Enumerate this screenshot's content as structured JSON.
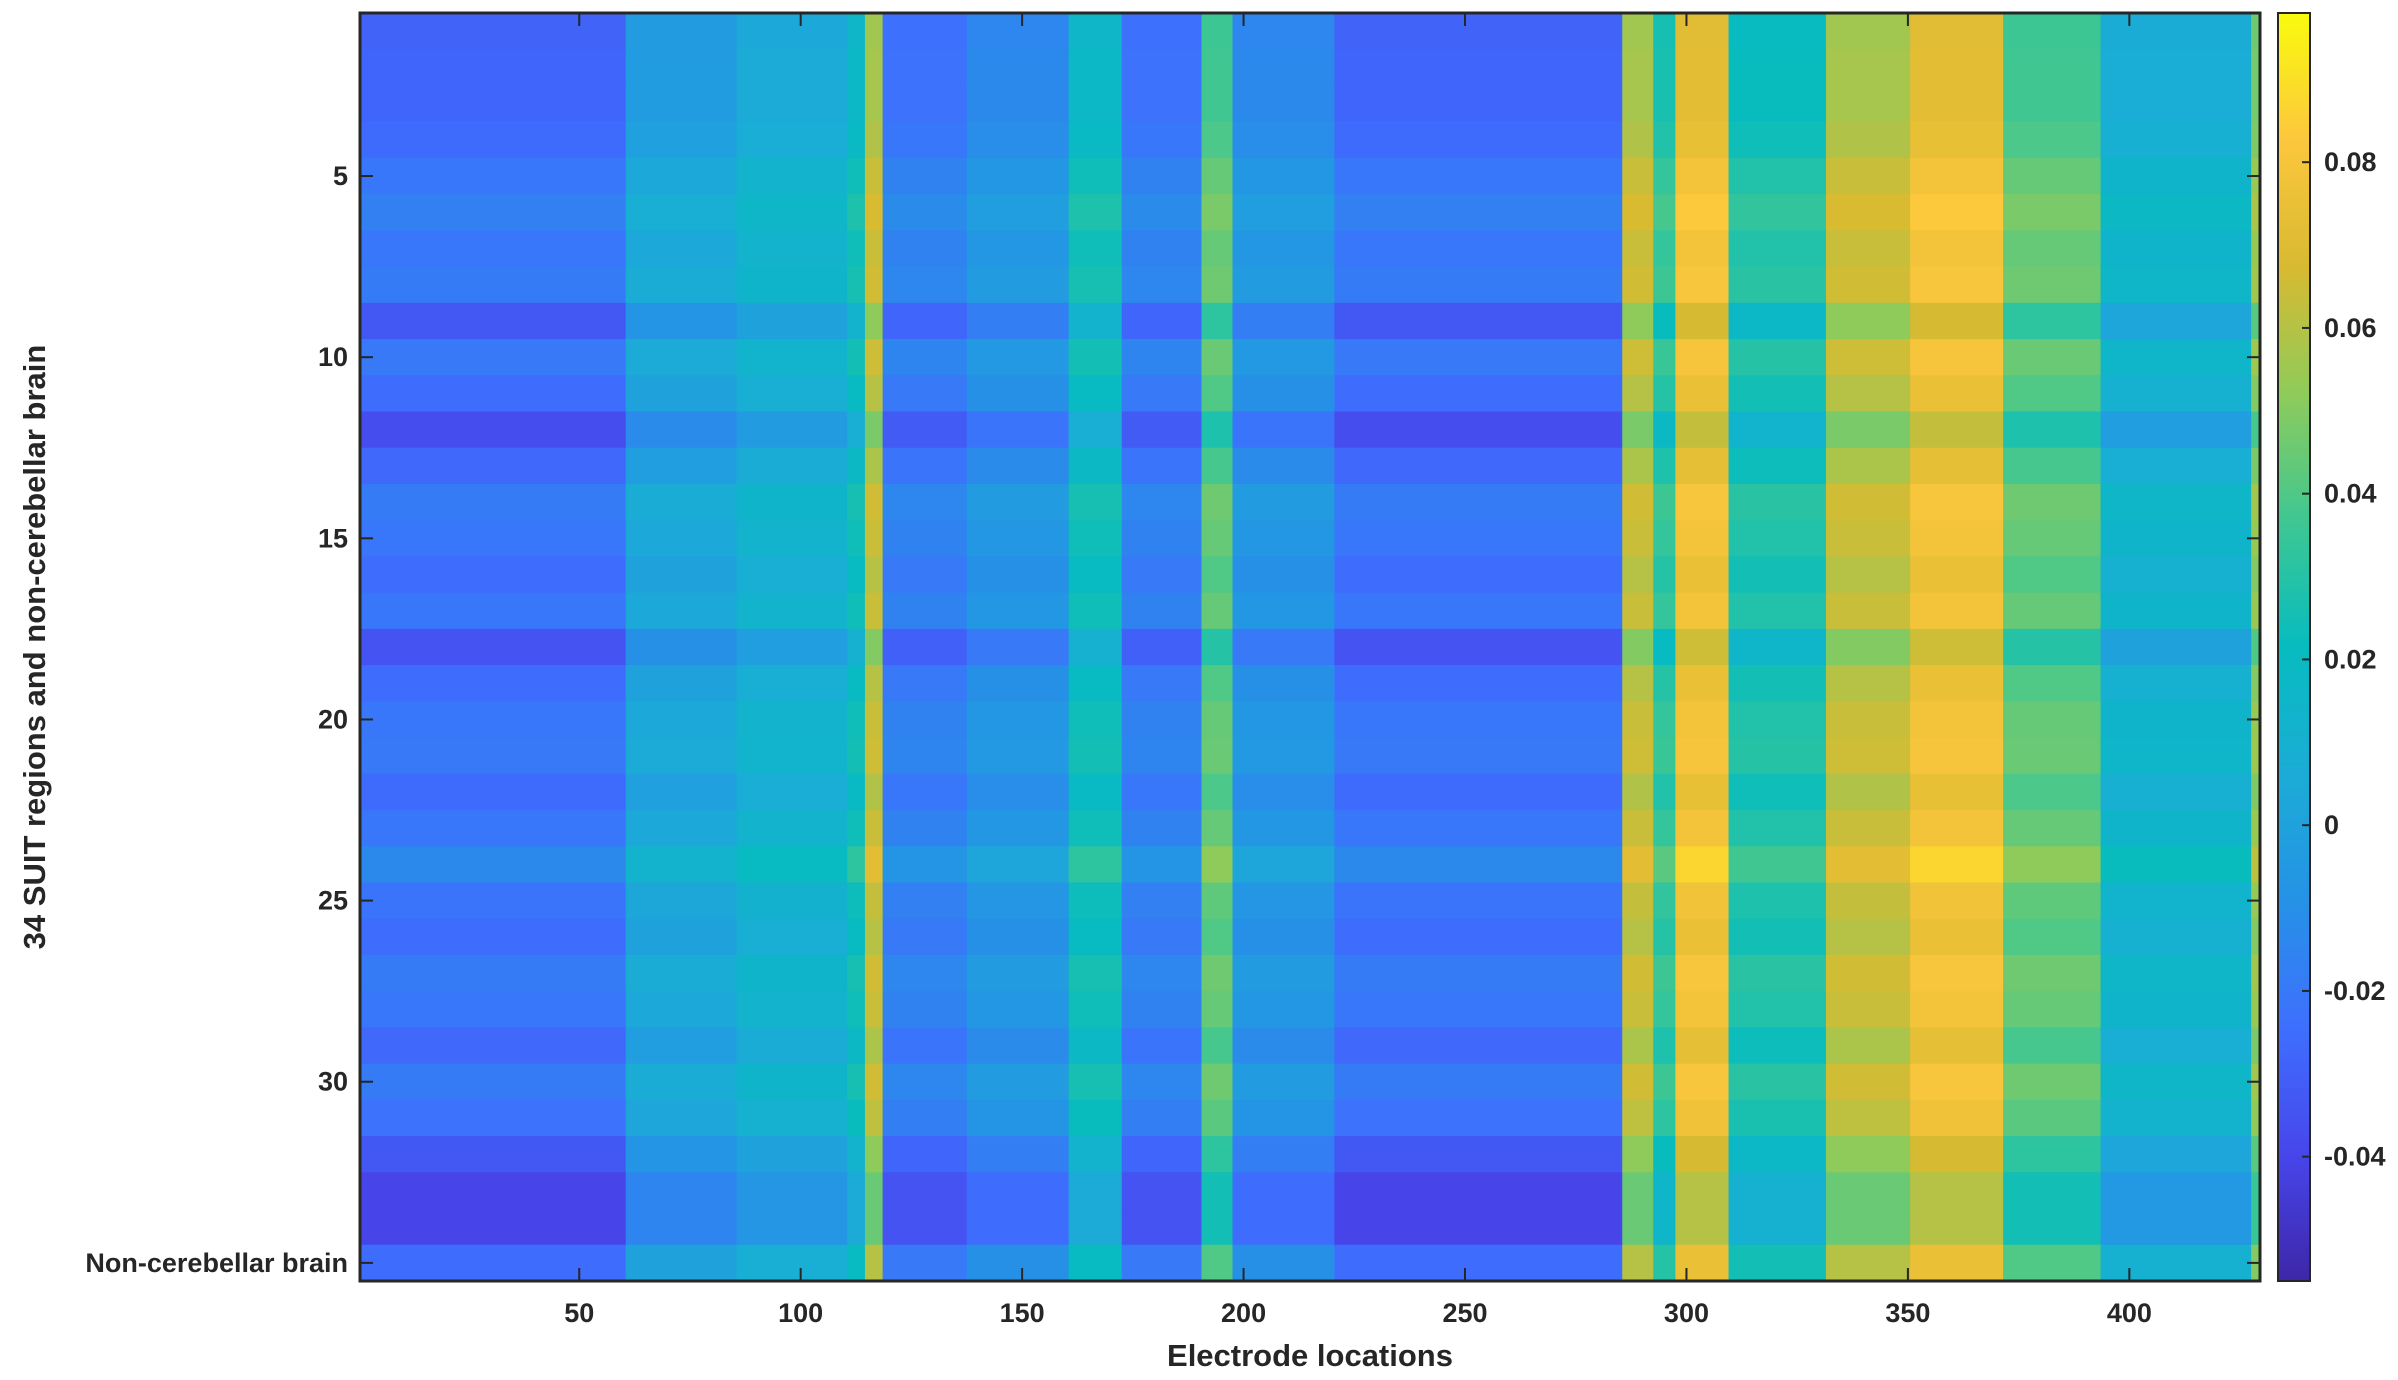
{
  "chart_data": {
    "type": "heatmap",
    "title": "",
    "xlabel": "Electrode locations",
    "ylabel": "34 SUIT regions and non-cerebellar brain",
    "xlim": [
      0.5,
      429.5
    ],
    "ylim": [
      0.5,
      35.5
    ],
    "x_ticks": [
      50,
      100,
      150,
      200,
      250,
      300,
      350,
      400
    ],
    "x_tick_labels": [
      "50",
      "100",
      "150",
      "200",
      "250",
      "300",
      "350",
      "400"
    ],
    "y_ticks": [
      5,
      10,
      15,
      20,
      25,
      30,
      35
    ],
    "y_tick_labels": [
      "5",
      "10",
      "15",
      "20",
      "25",
      "30",
      "Non-cerebellar brain"
    ],
    "n_rows": 35,
    "n_columns": 429,
    "colormap": "parula",
    "colorbar": {
      "range": [
        -0.055,
        0.098
      ],
      "ticks": [
        -0.04,
        -0.02,
        0,
        0.02,
        0.04,
        0.06,
        0.08
      ],
      "tick_labels": [
        "-0.04",
        "-0.02",
        "0",
        "0.02",
        "0.04",
        "0.06",
        "0.08"
      ]
    },
    "column_group_values": [
      {
        "columns": [
          1,
          60
        ],
        "value": -0.025
      },
      {
        "columns": [
          61,
          85
        ],
        "value": 0.0
      },
      {
        "columns": [
          86,
          110
        ],
        "value": 0.008
      },
      {
        "columns": [
          111,
          114
        ],
        "value": 0.02
      },
      {
        "columns": [
          115,
          118
        ],
        "value": 0.06
      },
      {
        "columns": [
          119,
          137
        ],
        "value": -0.02
      },
      {
        "columns": [
          138,
          160
        ],
        "value": -0.01
      },
      {
        "columns": [
          161,
          172
        ],
        "value": 0.02
      },
      {
        "columns": [
          173,
          190
        ],
        "value": -0.02
      },
      {
        "columns": [
          191,
          197
        ],
        "value": 0.04
      },
      {
        "columns": [
          198,
          220
        ],
        "value": -0.01
      },
      {
        "columns": [
          221,
          285
        ],
        "value": -0.025
      },
      {
        "columns": [
          286,
          292
        ],
        "value": 0.06
      },
      {
        "columns": [
          293,
          297
        ],
        "value": 0.03
      },
      {
        "columns": [
          298,
          309
        ],
        "value": 0.075
      },
      {
        "columns": [
          310,
          331
        ],
        "value": 0.025
      },
      {
        "columns": [
          332,
          350
        ],
        "value": 0.06
      },
      {
        "columns": [
          351,
          371
        ],
        "value": 0.075
      },
      {
        "columns": [
          372,
          393
        ],
        "value": 0.04
      },
      {
        "columns": [
          394,
          427
        ],
        "value": 0.01
      },
      {
        "columns": [
          428,
          429
        ],
        "value": 0.05
      }
    ],
    "row_offsets": [
      -0.004,
      -0.003,
      -0.003,
      -0.001,
      0.004,
      0.008,
      0.004,
      0.006,
      -0.008,
      0.005,
      0.0,
      -0.012,
      -0.002,
      0.006,
      0.004,
      0.0,
      0.004,
      -0.01,
      0.0,
      0.004,
      0.005,
      -0.001,
      0.004,
      0.012,
      0.003,
      0.0,
      0.006,
      0.004,
      -0.002,
      0.006,
      0.002,
      -0.008,
      -0.015,
      -0.015,
      0.0
    ]
  }
}
